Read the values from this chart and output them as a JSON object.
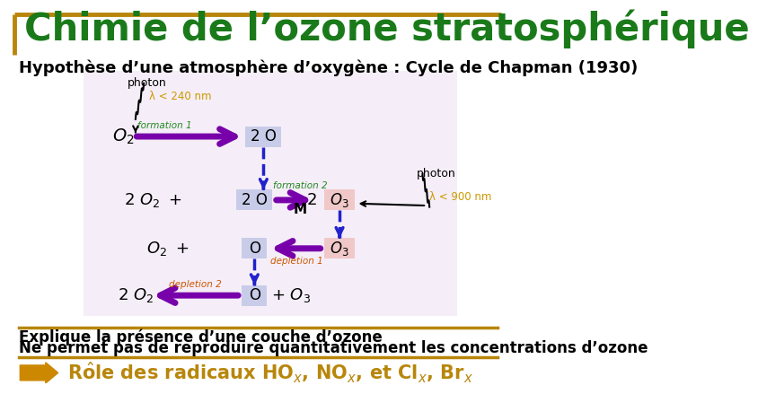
{
  "title": "Chimie de l’ozone stratosphérique",
  "subtitle": "Hypothèse d’une atmosphère d’oxygène : Cycle de Chapman (1930)",
  "title_color": "#1a7a1a",
  "title_fontsize": 30,
  "subtitle_fontsize": 13,
  "border_color_top": "#b8860b",
  "border_color_left": "#8b6914",
  "bg_color": "#ffffff",
  "diagram_bg": "#f5eef8",
  "purple": "#7700aa",
  "blue_dashed": "#2222cc",
  "orange_label": "#cc5500",
  "green_label": "#228822",
  "yellow_label": "#cc9900",
  "box_blue": "#c8cce8",
  "box_pink": "#f0c8c8",
  "text_black": "#000000",
  "arrow_gold": "#cc8800",
  "footer_line1": "Explique la présence d’une couche d’ozone",
  "footer_line2": "Ne permet pas de reproduire quantitativement les concentrations d’ozone",
  "footer_bold": "Rôle des radicaux HO",
  "gold_line_color": "#b8860b"
}
